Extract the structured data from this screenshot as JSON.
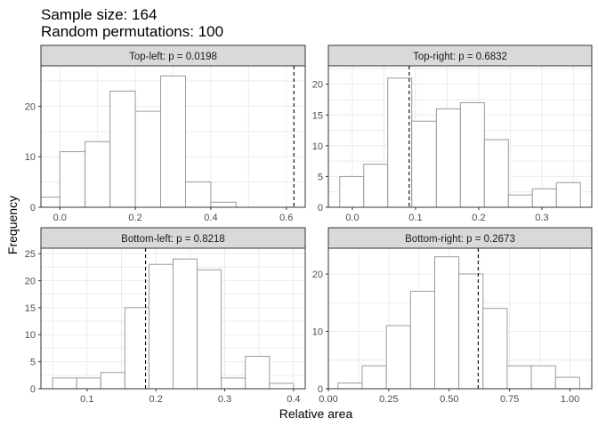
{
  "title": {
    "line1": "Sample size: 164",
    "line2": "Random permutations: 100"
  },
  "axes": {
    "xlabel": "Relative area",
    "ylabel": "Frequency"
  },
  "colors": {
    "bar_fill": "#ffffff",
    "bar_stroke": "#9a9a9a",
    "strip_fill": "#d9d9d9",
    "grid": "#ebebeb",
    "panel_border": "#333333",
    "observed_line": "#000000"
  },
  "chart_data": [
    {
      "type": "bar",
      "panel": "Top-left",
      "strip_label": "Top-left: p = 0.0198",
      "observed": 0.62,
      "bins": [
        {
          "x0": -0.05,
          "x1": 0.0,
          "count": 2
        },
        {
          "x0": 0.0,
          "x1": 0.067,
          "count": 11
        },
        {
          "x0": 0.067,
          "x1": 0.133,
          "count": 13
        },
        {
          "x0": 0.133,
          "x1": 0.2,
          "count": 23
        },
        {
          "x0": 0.2,
          "x1": 0.267,
          "count": 19
        },
        {
          "x0": 0.267,
          "x1": 0.333,
          "count": 26
        },
        {
          "x0": 0.333,
          "x1": 0.4,
          "count": 5
        },
        {
          "x0": 0.4,
          "x1": 0.467,
          "count": 1
        }
      ],
      "xlim": [
        -0.05,
        0.65
      ],
      "ylim": [
        0,
        28
      ],
      "xticks": [
        0.0,
        0.2,
        0.4,
        0.6
      ],
      "xtick_labels": [
        "0.0",
        "0.2",
        "0.4",
        "0.6"
      ],
      "yticks": [
        0,
        10,
        20
      ],
      "ytick_labels": [
        "0",
        "10",
        "20"
      ],
      "grid": true
    },
    {
      "type": "bar",
      "panel": "Top-right",
      "strip_label": "Top-right: p = 0.6832",
      "observed": 0.09,
      "bins": [
        {
          "x0": -0.02,
          "x1": 0.018,
          "count": 5
        },
        {
          "x0": 0.018,
          "x1": 0.056,
          "count": 7
        },
        {
          "x0": 0.056,
          "x1": 0.094,
          "count": 21
        },
        {
          "x0": 0.094,
          "x1": 0.133,
          "count": 14
        },
        {
          "x0": 0.133,
          "x1": 0.171,
          "count": 16
        },
        {
          "x0": 0.171,
          "x1": 0.209,
          "count": 17
        },
        {
          "x0": 0.209,
          "x1": 0.247,
          "count": 11
        },
        {
          "x0": 0.247,
          "x1": 0.285,
          "count": 2
        },
        {
          "x0": 0.285,
          "x1": 0.323,
          "count": 3
        },
        {
          "x0": 0.323,
          "x1": 0.361,
          "count": 4
        }
      ],
      "xlim": [
        -0.038,
        0.379
      ],
      "ylim": [
        0,
        23
      ],
      "xticks": [
        0.0,
        0.1,
        0.2,
        0.3
      ],
      "xtick_labels": [
        "0.0",
        "0.1",
        "0.2",
        "0.3"
      ],
      "yticks": [
        0,
        5,
        10,
        15,
        20
      ],
      "ytick_labels": [
        "0",
        "5",
        "10",
        "15",
        "20"
      ],
      "grid": true
    },
    {
      "type": "bar",
      "panel": "Bottom-left",
      "strip_label": "Bottom-left: p = 0.8218",
      "observed": 0.185,
      "bins": [
        {
          "x0": 0.05,
          "x1": 0.085,
          "count": 2
        },
        {
          "x0": 0.085,
          "x1": 0.12,
          "count": 2
        },
        {
          "x0": 0.12,
          "x1": 0.155,
          "count": 3
        },
        {
          "x0": 0.155,
          "x1": 0.19,
          "count": 15
        },
        {
          "x0": 0.19,
          "x1": 0.225,
          "count": 23
        },
        {
          "x0": 0.225,
          "x1": 0.26,
          "count": 24
        },
        {
          "x0": 0.26,
          "x1": 0.295,
          "count": 22
        },
        {
          "x0": 0.295,
          "x1": 0.33,
          "count": 2
        },
        {
          "x0": 0.33,
          "x1": 0.365,
          "count": 6
        },
        {
          "x0": 0.365,
          "x1": 0.4,
          "count": 1
        }
      ],
      "xlim": [
        0.033,
        0.417
      ],
      "ylim": [
        0,
        26
      ],
      "xticks": [
        0.1,
        0.2,
        0.3,
        0.4
      ],
      "xtick_labels": [
        "0.1",
        "0.2",
        "0.3",
        "0.4"
      ],
      "yticks": [
        0,
        5,
        10,
        15,
        20,
        25
      ],
      "ytick_labels": [
        "0",
        "5",
        "10",
        "15",
        "20",
        "25"
      ],
      "grid": true
    },
    {
      "type": "bar",
      "panel": "Bottom-right",
      "strip_label": "Bottom-right: p = 0.2673",
      "observed": 0.62,
      "bins": [
        {
          "x0": 0.04,
          "x1": 0.14,
          "count": 1
        },
        {
          "x0": 0.14,
          "x1": 0.24,
          "count": 4
        },
        {
          "x0": 0.24,
          "x1": 0.34,
          "count": 11
        },
        {
          "x0": 0.34,
          "x1": 0.44,
          "count": 17
        },
        {
          "x0": 0.44,
          "x1": 0.54,
          "count": 23
        },
        {
          "x0": 0.54,
          "x1": 0.64,
          "count": 20
        },
        {
          "x0": 0.64,
          "x1": 0.74,
          "count": 14
        },
        {
          "x0": 0.74,
          "x1": 0.84,
          "count": 4
        },
        {
          "x0": 0.84,
          "x1": 0.94,
          "count": 4
        },
        {
          "x0": 0.94,
          "x1": 1.04,
          "count": 2
        }
      ],
      "xlim": [
        0.0,
        1.09
      ],
      "ylim": [
        0,
        24.5
      ],
      "xticks": [
        0.0,
        0.25,
        0.5,
        0.75,
        1.0
      ],
      "xtick_labels": [
        "0.00",
        "0.25",
        "0.50",
        "0.75",
        "1.00"
      ],
      "yticks": [
        0,
        10,
        20
      ],
      "ytick_labels": [
        "0",
        "10",
        "20"
      ],
      "grid": true
    }
  ]
}
